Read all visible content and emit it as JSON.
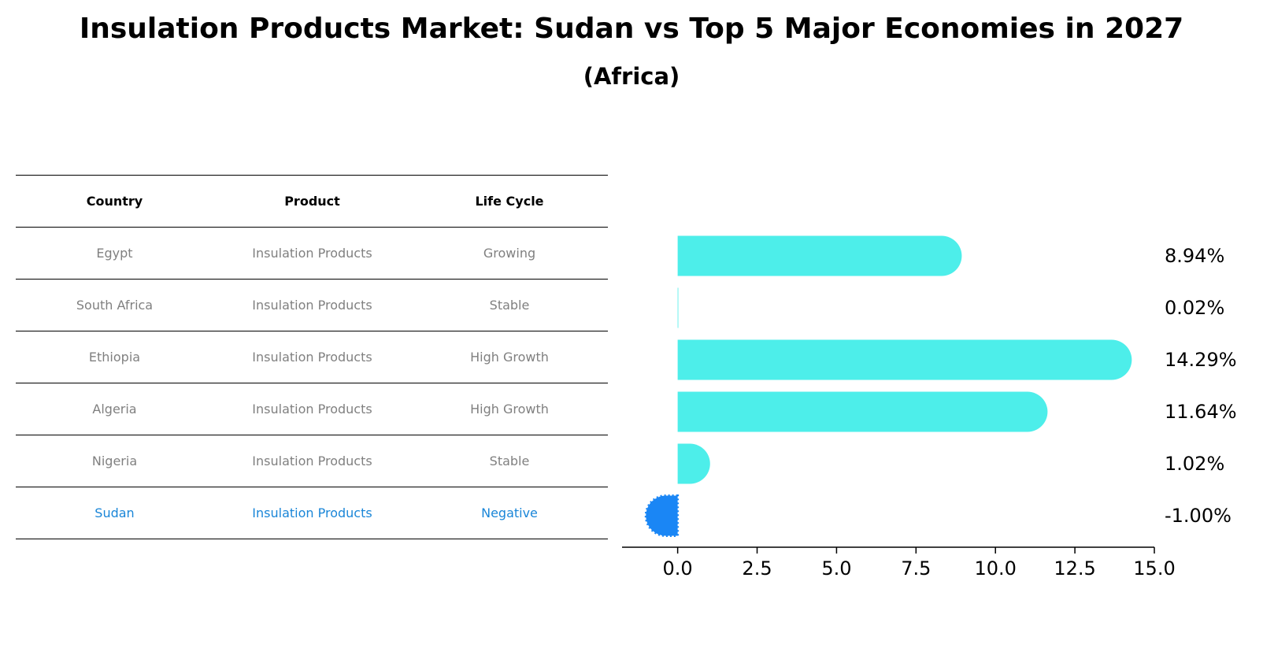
{
  "title": "Insulation Products Market: Sudan vs Top 5 Major Economies in 2027",
  "subtitle": "(Africa)",
  "table": {
    "headers": [
      "Country",
      "Product",
      "Life Cycle"
    ],
    "rows": [
      {
        "country": "Egypt",
        "product": "Insulation Products",
        "life_cycle": "Growing"
      },
      {
        "country": "South Africa",
        "product": "Insulation Products",
        "life_cycle": "Stable"
      },
      {
        "country": "Ethiopia",
        "product": "Insulation Products",
        "life_cycle": "High Growth"
      },
      {
        "country": "Algeria",
        "product": "Insulation Products",
        "life_cycle": "High Growth"
      },
      {
        "country": "Nigeria",
        "product": "Insulation Products",
        "life_cycle": "Stable"
      },
      {
        "country": "Sudan",
        "product": "Insulation Products",
        "life_cycle": "Negative"
      }
    ]
  },
  "colors": {
    "bar": "#4deeea",
    "highlight_bar": "#1a86f5",
    "highlight_text": "#1a86d8",
    "muted_text": "#808080"
  },
  "chart_data": {
    "type": "bar",
    "orientation": "horizontal",
    "categories": [
      "Egypt",
      "South Africa",
      "Ethiopia",
      "Algeria",
      "Nigeria",
      "Sudan"
    ],
    "values": [
      8.94,
      0.02,
      14.29,
      11.64,
      1.02,
      -1.0
    ],
    "value_labels": [
      "8.94%",
      "0.02%",
      "14.29%",
      "11.64%",
      "1.02%",
      "-1.00%"
    ],
    "highlight": "Sudan",
    "xlim": [
      -1.75,
      15.0
    ],
    "xticks": [
      0.0,
      2.5,
      5.0,
      7.5,
      10.0,
      12.5,
      15.0
    ],
    "xtick_labels": [
      "0.0",
      "2.5",
      "5.0",
      "7.5",
      "10.0",
      "12.5",
      "15.0"
    ],
    "grid": false
  }
}
